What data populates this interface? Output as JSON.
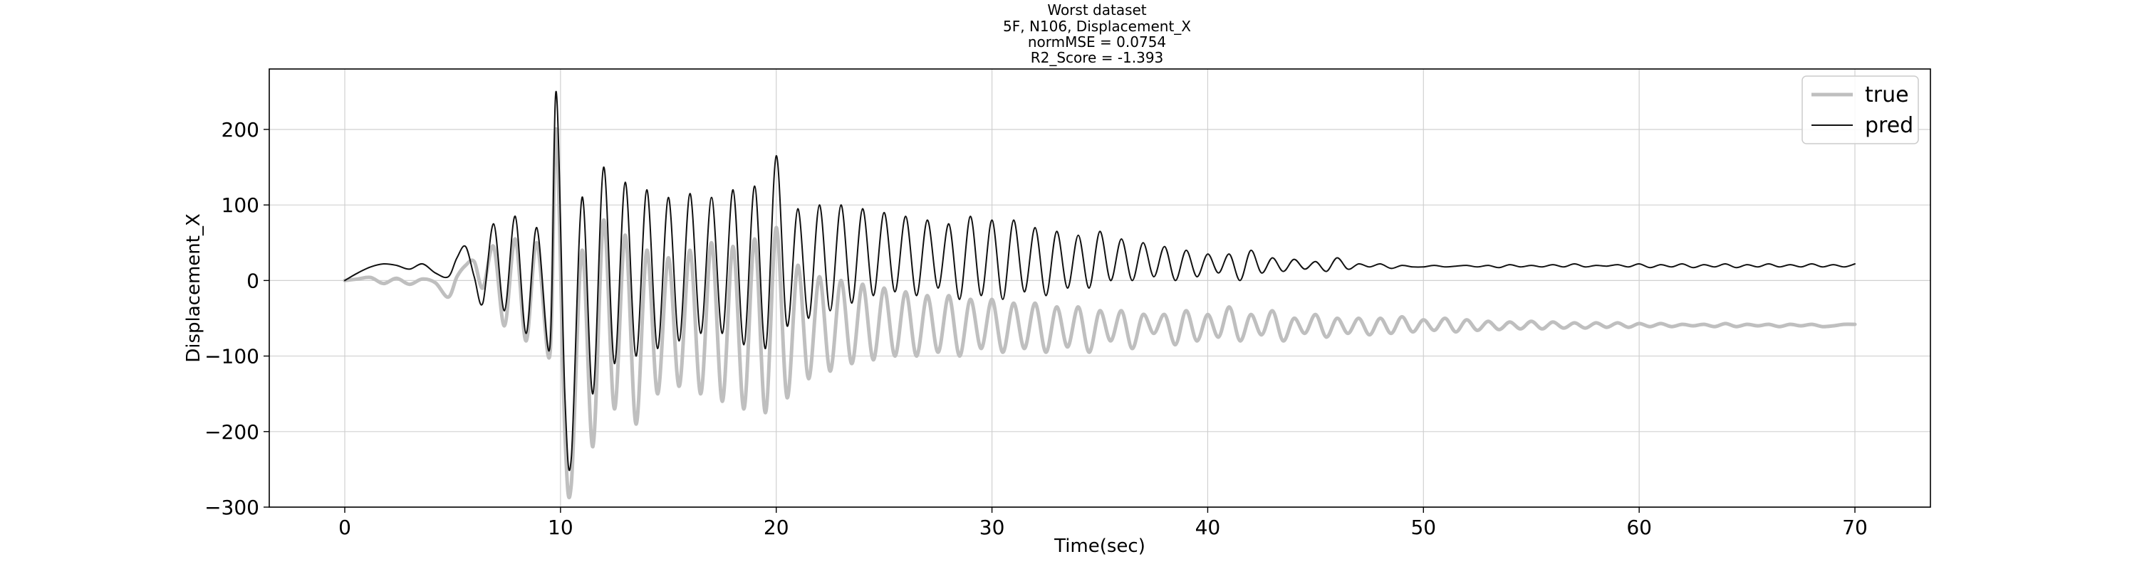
{
  "chart_data": {
    "type": "line",
    "title_lines": [
      "Worst dataset",
      "5F, N106, Displacement_X",
      "normMSE = 0.0754",
      "R2_Score = -1.393"
    ],
    "xlabel": "Time(sec)",
    "ylabel": "Displacement_X",
    "xlim": [
      -3.5,
      73.5
    ],
    "ylim": [
      -300,
      280
    ],
    "xticks": [
      0,
      10,
      20,
      30,
      40,
      50,
      60,
      70
    ],
    "yticks": [
      -300,
      -200,
      -100,
      0,
      100,
      200
    ],
    "ytick_labels": [
      "−300",
      "−200",
      "−100",
      "0",
      "100",
      "200"
    ],
    "grid": true,
    "legend_position": "top-right",
    "series": [
      {
        "name": "true",
        "color": "#bfbfbf",
        "x": [
          0,
          0.6,
          1.2,
          1.8,
          2.4,
          3.0,
          3.6,
          4.2,
          4.8,
          5.2,
          5.6,
          6.0,
          6.4,
          6.9,
          7.4,
          7.9,
          8.4,
          8.9,
          9.5,
          9.8,
          10.2,
          10.5,
          11.0,
          11.5,
          12.0,
          12.5,
          13.0,
          13.5,
          14.0,
          14.5,
          15.0,
          15.5,
          16.0,
          16.5,
          17.0,
          17.5,
          18.0,
          18.5,
          19.0,
          19.5,
          20.0,
          20.5,
          21.0,
          21.5,
          22.0,
          22.5,
          23.0,
          23.5,
          24.0,
          24.5,
          25.0,
          25.5,
          26.0,
          26.5,
          27.0,
          27.5,
          28.0,
          28.5,
          29.0,
          29.5,
          30.0,
          30.5,
          31.0,
          31.5,
          32.0,
          32.5,
          33.0,
          33.5,
          34.0,
          34.5,
          35.0,
          35.5,
          36.0,
          36.5,
          37.0,
          37.5,
          38.0,
          38.5,
          39.0,
          39.5,
          40.0,
          40.5,
          41.0,
          41.5,
          42.0,
          42.5,
          43.0,
          43.5,
          44.0,
          44.5,
          45.0,
          45.5,
          46.0,
          46.5,
          47.0,
          47.5,
          48.0,
          48.5,
          49.0,
          49.5,
          50.0,
          50.5,
          51.0,
          51.5,
          52.0,
          52.5,
          53.0,
          53.5,
          54.0,
          54.5,
          55.0,
          55.5,
          56.0,
          56.5,
          57.0,
          57.5,
          58.0,
          58.5,
          59.0,
          59.5,
          60.0,
          60.5,
          61.0,
          61.5,
          62.0,
          62.5,
          63.0,
          63.5,
          64.0,
          64.5,
          65.0,
          65.5,
          66.0,
          66.5,
          67.0,
          67.5,
          68.0,
          68.5,
          69.0,
          69.5,
          70.0
        ],
        "y": [
          0,
          2,
          4,
          -4,
          3,
          -5,
          2,
          -3,
          -22,
          5,
          20,
          25,
          -10,
          45,
          -60,
          55,
          -80,
          50,
          -100,
          200,
          -200,
          -270,
          40,
          -220,
          80,
          -170,
          60,
          -190,
          40,
          -150,
          30,
          -140,
          40,
          -150,
          50,
          -160,
          45,
          -170,
          55,
          -175,
          70,
          -155,
          20,
          -130,
          5,
          -120,
          0,
          -110,
          -5,
          -105,
          -10,
          -100,
          -15,
          -100,
          -20,
          -95,
          -20,
          -100,
          -25,
          -90,
          -25,
          -95,
          -30,
          -90,
          -30,
          -95,
          -35,
          -88,
          -35,
          -95,
          -40,
          -80,
          -40,
          -90,
          -45,
          -70,
          -45,
          -85,
          -40,
          -80,
          -45,
          -75,
          -35,
          -80,
          -45,
          -72,
          -40,
          -80,
          -50,
          -70,
          -45,
          -75,
          -50,
          -70,
          -50,
          -72,
          -50,
          -70,
          -48,
          -68,
          -52,
          -66,
          -50,
          -68,
          -52,
          -66,
          -54,
          -65,
          -55,
          -64,
          -54,
          -64,
          -55,
          -63,
          -56,
          -63,
          -56,
          -62,
          -56,
          -62,
          -57,
          -61,
          -57,
          -61,
          -58,
          -60,
          -58,
          -61,
          -57,
          -61,
          -58,
          -60,
          -58,
          -61,
          -58,
          -60,
          -58,
          -61,
          -60,
          -58,
          -58
        ]
      },
      {
        "name": "pred",
        "color": "#111111",
        "x": [
          0,
          0.6,
          1.2,
          1.8,
          2.4,
          3.0,
          3.6,
          4.2,
          4.8,
          5.2,
          5.6,
          6.0,
          6.4,
          6.9,
          7.4,
          7.9,
          8.4,
          8.9,
          9.5,
          9.8,
          10.2,
          10.5,
          11.0,
          11.5,
          12.0,
          12.5,
          13.0,
          13.5,
          14.0,
          14.5,
          15.0,
          15.5,
          16.0,
          16.5,
          17.0,
          17.5,
          18.0,
          18.5,
          19.0,
          19.5,
          20.0,
          20.5,
          21.0,
          21.5,
          22.0,
          22.5,
          23.0,
          23.5,
          24.0,
          24.5,
          25.0,
          25.5,
          26.0,
          26.5,
          27.0,
          27.5,
          28.0,
          28.5,
          29.0,
          29.5,
          30.0,
          30.5,
          31.0,
          31.5,
          32.0,
          32.5,
          33.0,
          33.5,
          34.0,
          34.5,
          35.0,
          35.5,
          36.0,
          36.5,
          37.0,
          37.5,
          38.0,
          38.5,
          39.0,
          39.5,
          40.0,
          40.5,
          41.0,
          41.5,
          42.0,
          42.5,
          43.0,
          43.5,
          44.0,
          44.5,
          45.0,
          45.5,
          46.0,
          46.5,
          47.0,
          47.5,
          48.0,
          48.5,
          49.0,
          49.5,
          50.0,
          50.5,
          51.0,
          51.5,
          52.0,
          52.5,
          53.0,
          53.5,
          54.0,
          54.5,
          55.0,
          55.5,
          56.0,
          56.5,
          57.0,
          57.5,
          58.0,
          58.5,
          59.0,
          59.5,
          60.0,
          60.5,
          61.0,
          61.5,
          62.0,
          62.5,
          63.0,
          63.5,
          64.0,
          64.5,
          65.0,
          65.5,
          66.0,
          66.5,
          67.0,
          67.5,
          68.0,
          68.5,
          69.0,
          69.5,
          70.0
        ],
        "y": [
          0,
          10,
          18,
          22,
          20,
          15,
          22,
          10,
          5,
          30,
          45,
          5,
          -30,
          75,
          -40,
          85,
          -70,
          70,
          -90,
          250,
          -150,
          -235,
          110,
          -150,
          150,
          -110,
          130,
          -100,
          120,
          -90,
          110,
          -80,
          115,
          -70,
          110,
          -70,
          120,
          -85,
          125,
          -90,
          165,
          -60,
          95,
          -50,
          100,
          -40,
          100,
          -30,
          95,
          -20,
          90,
          -15,
          85,
          -20,
          80,
          -10,
          75,
          -25,
          85,
          -20,
          80,
          -25,
          80,
          -15,
          70,
          -20,
          65,
          -10,
          60,
          -10,
          65,
          0,
          55,
          0,
          50,
          5,
          45,
          0,
          40,
          5,
          35,
          10,
          35,
          0,
          40,
          10,
          30,
          12,
          28,
          15,
          25,
          12,
          30,
          15,
          22,
          18,
          22,
          16,
          20,
          18,
          18,
          20,
          18,
          19,
          20,
          18,
          20,
          17,
          21,
          18,
          20,
          18,
          21,
          18,
          22,
          18,
          20,
          19,
          21,
          18,
          22,
          17,
          21,
          18,
          22,
          17,
          21,
          18,
          22,
          17,
          21,
          18,
          22,
          18,
          21,
          18,
          22,
          18,
          21,
          18,
          22
        ]
      }
    ]
  }
}
